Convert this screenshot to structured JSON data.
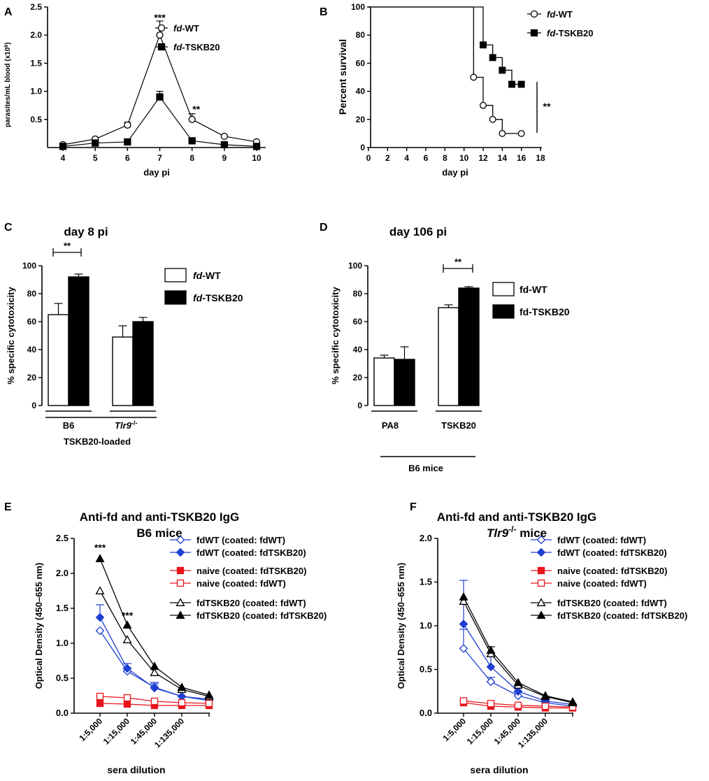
{
  "chart_data": [
    {
      "panel": "A",
      "type": "line",
      "title": "",
      "xlabel": "day pi",
      "ylabel": "parasites/mL blood (x10⁶)",
      "x": [
        4,
        5,
        6,
        7,
        8,
        9,
        10
      ],
      "xticks": [
        "4",
        "5",
        "6",
        "7",
        "8",
        "9",
        "10"
      ],
      "yticks": [
        "0.5",
        "1.0",
        "1.5",
        "2.0",
        "2.5"
      ],
      "ylim": [
        0,
        2.5
      ],
      "series": [
        {
          "name": "fd-WT",
          "name_italic": "fd",
          "name_rest": "-WT",
          "marker": "open-circle",
          "color": "#000000",
          "values": [
            0.05,
            0.15,
            0.4,
            2.0,
            0.5,
            0.2,
            0.1
          ],
          "err": [
            0.02,
            0.03,
            0.05,
            0.25,
            0.1,
            0.03,
            0.02
          ]
        },
        {
          "name": "fd-TSKB20",
          "name_italic": "fd",
          "name_rest": "-TSKB20",
          "marker": "filled-square",
          "color": "#000000",
          "values": [
            0.02,
            0.08,
            0.1,
            0.9,
            0.12,
            0.05,
            0.02
          ],
          "err": [
            0.01,
            0.01,
            0.02,
            0.1,
            0.02,
            0.01,
            0.01
          ]
        }
      ],
      "annotations": [
        {
          "text": "***",
          "x": 7,
          "y": 2.25
        },
        {
          "text": "**",
          "x": 8,
          "y": 0.62
        }
      ]
    },
    {
      "panel": "B",
      "type": "line",
      "subtype": "kaplan-meier",
      "xlabel": "day pi",
      "ylabel": "Percent survival",
      "xticks": [
        "0",
        "2",
        "4",
        "6",
        "8",
        "10",
        "12",
        "14",
        "16",
        "18"
      ],
      "yticks": [
        "0",
        "20",
        "40",
        "60",
        "80",
        "100"
      ],
      "xlim": [
        0,
        18
      ],
      "ylim": [
        0,
        100
      ],
      "series": [
        {
          "name": "fd-WT",
          "name_italic": "fd",
          "name_rest": "-WT",
          "marker": "open-circle",
          "x": [
            0,
            11,
            12,
            13,
            14,
            16
          ],
          "values": [
            100,
            50,
            30,
            20,
            10,
            10
          ]
        },
        {
          "name": "fd-TSKB20",
          "name_italic": "fd",
          "name_rest": "-TSKB20",
          "marker": "filled-square",
          "x": [
            0,
            11.5,
            12,
            13,
            14,
            15,
            16
          ],
          "values": [
            100,
            100,
            73,
            64,
            55,
            45,
            45
          ]
        }
      ],
      "annotations": [
        {
          "text": "**",
          "x": 17.5,
          "y": 28
        }
      ]
    },
    {
      "panel": "C",
      "type": "bar",
      "title": "day 8 pi",
      "ylabel": "% specific cytotoxicity",
      "yticks": [
        "0",
        "20",
        "40",
        "60",
        "80",
        "100"
      ],
      "ylim": [
        0,
        100
      ],
      "categories": [
        "B6",
        "Tlr9-/-"
      ],
      "category_label_B6": "B6",
      "category_label_tlr9": "Tlr9",
      "category_label_tlr9_sup": "-/-",
      "group_label": "TSKB20-loaded",
      "series": [
        {
          "name": "fd-WT",
          "name_italic": "fd",
          "name_rest": "-WT",
          "fill": "#ffffff",
          "values": [
            65,
            49
          ],
          "err": [
            8,
            8
          ]
        },
        {
          "name": "fd-TSKB20",
          "name_italic": "fd",
          "name_rest": "-TSKB20",
          "fill": "#000000",
          "values": [
            92,
            60
          ],
          "err": [
            2,
            3
          ]
        }
      ],
      "significance": [
        {
          "text": "**",
          "category": "B6"
        }
      ]
    },
    {
      "panel": "D",
      "type": "bar",
      "title": "day 106 pi",
      "ylabel": "% specific cytotoxicity",
      "yticks": [
        "0",
        "20",
        "40",
        "60",
        "80",
        "100"
      ],
      "ylim": [
        0,
        100
      ],
      "categories": [
        "PA8",
        "TSKB20"
      ],
      "group_label": "B6 mice",
      "series": [
        {
          "name": "fd-WT",
          "fill": "#ffffff",
          "values": [
            34,
            70
          ],
          "err": [
            2,
            2
          ]
        },
        {
          "name": "fd-TSKB20",
          "fill": "#000000",
          "values": [
            33,
            84
          ],
          "err": [
            9,
            1
          ]
        }
      ],
      "significance": [
        {
          "text": "**",
          "category": "TSKB20"
        }
      ]
    },
    {
      "panel": "E",
      "type": "line",
      "title": "Anti-fd and anti-TSKB20 IgG",
      "subtitle": "B6 mice",
      "xlabel": "sera dilution",
      "ylabel": "Optical Density (450–655 nm)",
      "categories": [
        "1:5,000",
        "1:15,000",
        "1:45,000",
        "1:135,000",
        ""
      ],
      "yticks": [
        "0.0",
        "0.5",
        "1.0",
        "1.5",
        "2.0",
        "2.5"
      ],
      "ylim": [
        0,
        2.5
      ],
      "series": [
        {
          "name": "fdWT (coated: fdWT)",
          "color": "#1f3fd1",
          "marker": "open-diamond",
          "values": [
            1.18,
            0.6,
            0.37,
            0.24,
            0.18
          ],
          "err": [
            0,
            0.05,
            0.05,
            0,
            0
          ]
        },
        {
          "name": "fdWT (coated: fdTSKB20)",
          "color": "#1f3fd1",
          "marker": "filled-diamond",
          "values": [
            1.37,
            0.64,
            0.36,
            0.24,
            0.2
          ],
          "err": [
            0.18,
            0.07,
            0.08,
            0,
            0
          ]
        },
        {
          "name": "naive (coated: fdTSKB20)",
          "color": "#e8151b",
          "marker": "filled-square",
          "values": [
            0.14,
            0.13,
            0.11,
            0.11,
            0.11
          ],
          "err": [
            0,
            0,
            0,
            0,
            0
          ]
        },
        {
          "name": "naive (coated: fdWT)",
          "color": "#e8151b",
          "marker": "open-square",
          "values": [
            0.24,
            0.22,
            0.17,
            0.15,
            0.14
          ],
          "err": [
            0,
            0,
            0,
            0,
            0
          ]
        },
        {
          "name": "fdTSKB20 (coated: fdWT)",
          "color": "#000000",
          "marker": "open-triangle",
          "values": [
            1.75,
            1.05,
            0.58,
            0.34,
            0.24
          ],
          "err": [
            0,
            0,
            0,
            0,
            0
          ]
        },
        {
          "name": "fdTSKB20 (coated: fdTSKB20)",
          "color": "#000000",
          "marker": "filled-triangle",
          "values": [
            2.21,
            1.26,
            0.67,
            0.37,
            0.26
          ],
          "err": [
            0,
            0,
            0,
            0,
            0
          ]
        }
      ],
      "annotations": [
        {
          "text": "***",
          "category": 0,
          "y": 2.32
        },
        {
          "text": "***",
          "category": 1,
          "y": 1.35
        }
      ]
    },
    {
      "panel": "F",
      "type": "line",
      "title": "Anti-fd and anti-TSKB20 IgG",
      "subtitle_italic": "Tlr9",
      "subtitle_sup": "-/-",
      "subtitle_rest": " mice",
      "xlabel": "sera dilution",
      "ylabel": "Optical Density (450–655 nm)",
      "categories": [
        "1:5,000",
        "1:15,000",
        "1:45,000",
        "1:135,000",
        ""
      ],
      "yticks": [
        "0.0",
        "0.5",
        "1.0",
        "1.5",
        "2.0"
      ],
      "ylim": [
        0,
        2.0
      ],
      "series": [
        {
          "name": "fdWT (coated: fdWT)",
          "color": "#1f3fd1",
          "marker": "open-diamond",
          "values": [
            0.74,
            0.36,
            0.2,
            0.12,
            0.08
          ],
          "err": [
            0.22,
            0.05,
            0.04,
            0,
            0
          ]
        },
        {
          "name": "fdWT (coated: fdTSKB20)",
          "color": "#1f3fd1",
          "marker": "filled-diamond",
          "values": [
            1.02,
            0.53,
            0.25,
            0.14,
            0.1
          ],
          "err": [
            0.5,
            0.12,
            0.06,
            0,
            0
          ]
        },
        {
          "name": "naive (coated: fdTSKB20)",
          "color": "#e8151b",
          "marker": "filled-square",
          "values": [
            0.12,
            0.08,
            0.07,
            0.06,
            0.06
          ],
          "err": [
            0,
            0,
            0,
            0,
            0
          ]
        },
        {
          "name": "naive (coated: fdWT)",
          "color": "#e8151b",
          "marker": "open-square",
          "values": [
            0.14,
            0.11,
            0.09,
            0.08,
            0.07
          ],
          "err": [
            0,
            0,
            0,
            0,
            0
          ]
        },
        {
          "name": "fdTSKB20 (coated: fdWT)",
          "color": "#000000",
          "marker": "open-triangle",
          "values": [
            1.28,
            0.68,
            0.32,
            0.19,
            0.12
          ],
          "err": [
            0,
            0.08,
            0,
            0,
            0
          ]
        },
        {
          "name": "fdTSKB20 (coated: fdTSKB20)",
          "color": "#000000",
          "marker": "filled-triangle",
          "values": [
            1.33,
            0.72,
            0.35,
            0.2,
            0.13
          ],
          "err": [
            0,
            0,
            0,
            0,
            0
          ]
        }
      ]
    }
  ]
}
